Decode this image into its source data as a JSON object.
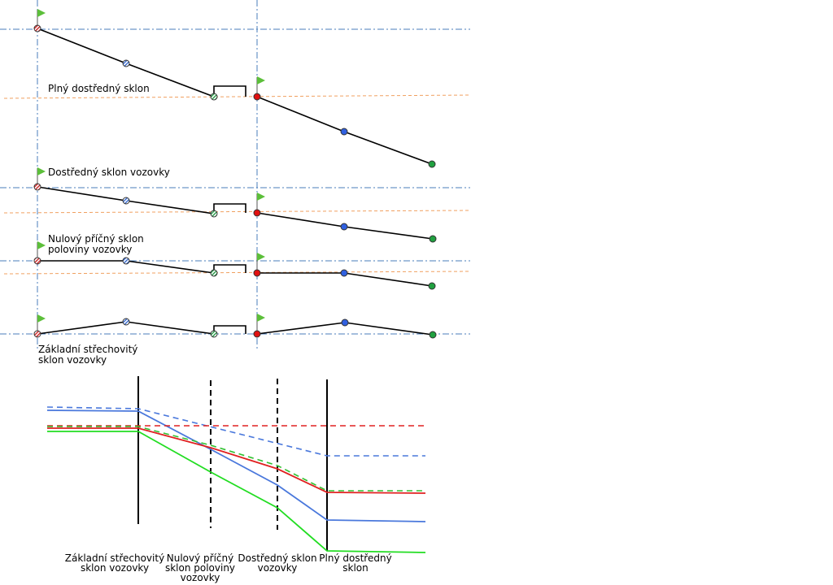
{
  "top_sections": [
    {
      "label_lines": [
        "Plný dostředný sklon"
      ]
    },
    {
      "label_lines": [
        "Dostředný sklon vozovky"
      ]
    },
    {
      "label_lines": [
        "Nulový příčný sklon",
        "poloviny vozovky"
      ]
    },
    {
      "label_lines": [
        "Základní střechovitý",
        "sklon vozovky"
      ]
    }
  ],
  "bottom_labels": [
    {
      "lines": [
        "Základní střechovitý",
        "sklon vozovky"
      ]
    },
    {
      "lines": [
        "Nulový příčný",
        "sklon poloviny",
        "vozovky"
      ]
    },
    {
      "lines": [
        "Dostředný sklon",
        "vozovky"
      ]
    },
    {
      "lines": [
        "Plný dostředný",
        "sklon"
      ]
    }
  ]
}
